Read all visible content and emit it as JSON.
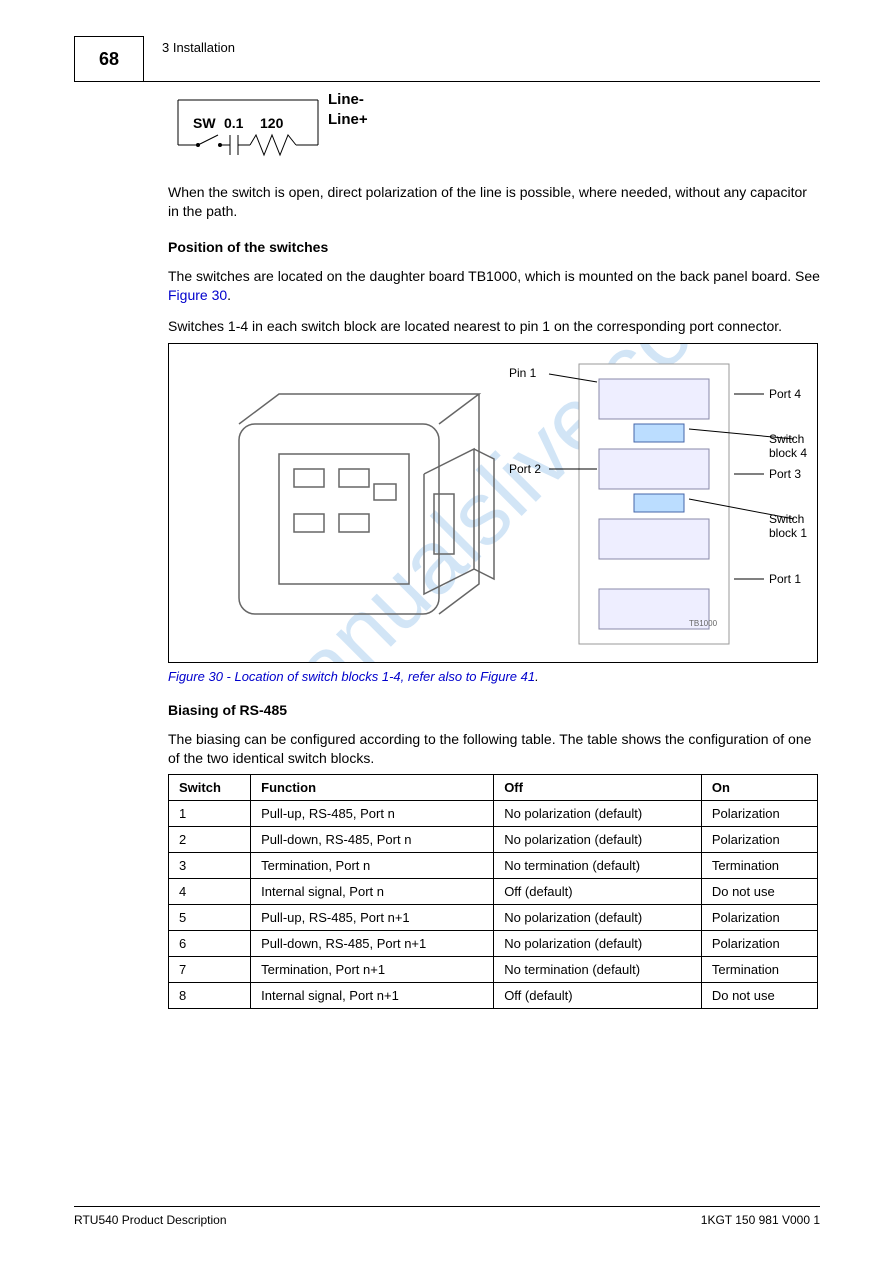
{
  "header": {
    "page_number": "68",
    "running_title": "3 Installation"
  },
  "circuit": {
    "sw": "SW",
    "c": "0.1",
    "r": "120",
    "line_minus": "Line-",
    "line_plus": "Line+"
  },
  "paragraphs": {
    "after_circuit": "When the switch is open, direct polarization of the line is possible, where needed, without any capacitor in the path.",
    "switch_pos_heading": "Position of the switches",
    "switch_pos_body_a": "The switches are located on the daughter board TB1000, which is mounted on the back panel board. See ",
    "switch_pos_link": "Figure 30",
    "switch_pos_body_b": ".",
    "switch_pos_body2": "Switches 1-4 in each switch block are located nearest to pin 1 on the corresponding port connector.",
    "bias_intro": "The biasing can be configured according to the following table. The table shows the configuration of one of the two identical switch blocks."
  },
  "figure": {
    "labels": {
      "pin1": "Pin 1",
      "port4": "Port 4",
      "switch4": "Switch block 4",
      "port2": "Port 2",
      "port3": "Port 3",
      "switch1": "Switch block 1",
      "port1": "Port 1",
      "board": "TB1000"
    },
    "caption_a": "Figure 30 - Location of switch blocks 1-4, refer also to ",
    "caption_link": "Figure 41",
    "caption_b": "."
  },
  "bias": {
    "heading": "Biasing of RS-485"
  },
  "table": {
    "headers": [
      "Switch",
      "Function",
      "Off",
      "On"
    ],
    "rows": [
      [
        "1",
        "Pull-up, RS-485, Port n",
        "No polarization (default)",
        "Polarization"
      ],
      [
        "2",
        "Pull-down, RS-485, Port n",
        "No polarization (default)",
        "Polarization"
      ],
      [
        "3",
        "Termination, Port n",
        "No termination (default)",
        "Termination"
      ],
      [
        "4",
        "Internal signal, Port n",
        "Off (default)",
        "Do not use"
      ],
      [
        "5",
        "Pull-up, RS-485, Port n+1",
        "No polarization (default)",
        "Polarization"
      ],
      [
        "6",
        "Pull-down, RS-485, Port n+1",
        "No polarization (default)",
        "Polarization"
      ],
      [
        "7",
        "Termination, Port n+1",
        "No termination (default)",
        "Termination"
      ],
      [
        "8",
        "Internal signal, Port n+1",
        "Off (default)",
        "Do not use"
      ]
    ]
  },
  "footer": {
    "doc_title": "RTU540 Product Description",
    "doc_rev": "1KGT 150 981 V000 1"
  },
  "colors": {
    "text": "#000000",
    "link": "#0000cc",
    "wm": "#7fb6e8",
    "bg": "#ffffff",
    "line": "#000000"
  }
}
